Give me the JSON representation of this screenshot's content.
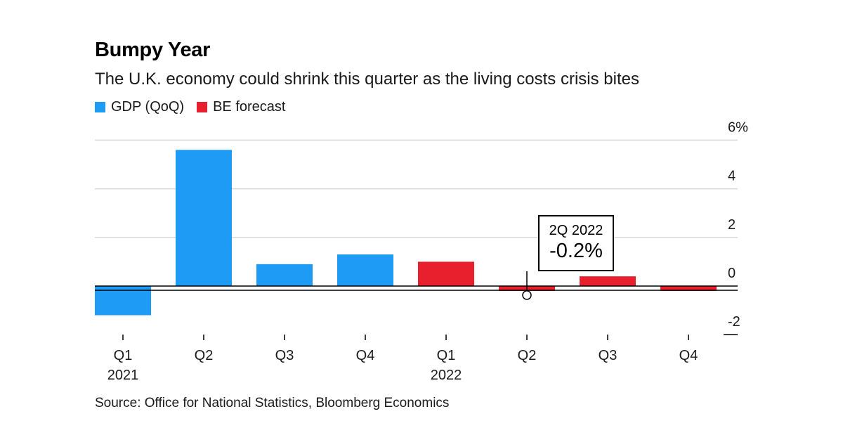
{
  "chart_data": {
    "type": "bar",
    "title": "Bumpy Year",
    "subtitle": "The U.K. economy could shrink this quarter as the living costs crisis bites",
    "legend": [
      {
        "name": "GDP (QoQ)",
        "color": "#1e9bf5"
      },
      {
        "name": "BE forecast",
        "color": "#e8202e"
      }
    ],
    "categories": [
      "Q1",
      "Q2",
      "Q3",
      "Q4",
      "Q1",
      "Q2",
      "Q3",
      "Q4"
    ],
    "year_labels": [
      "2021",
      "",
      "",
      "",
      "2022",
      "",
      "",
      ""
    ],
    "values": [
      -1.2,
      5.6,
      0.9,
      1.3,
      1.0,
      -0.2,
      0.4,
      -0.2
    ],
    "series_index": [
      0,
      0,
      0,
      0,
      1,
      1,
      1,
      1
    ],
    "y_ticks": [
      {
        "value": 6,
        "label": "6%"
      },
      {
        "value": 4,
        "label": "4"
      },
      {
        "value": 2,
        "label": "2"
      },
      {
        "value": 0,
        "label": "0"
      },
      {
        "value": -2,
        "label": "-2"
      }
    ],
    "ylim": [
      -2,
      6
    ],
    "grid": true,
    "annotation": {
      "category_index": 5,
      "label": "2Q 2022",
      "value_text": "-0.2%"
    }
  },
  "source": "Source: Office for National Statistics, Bloomberg Economics"
}
